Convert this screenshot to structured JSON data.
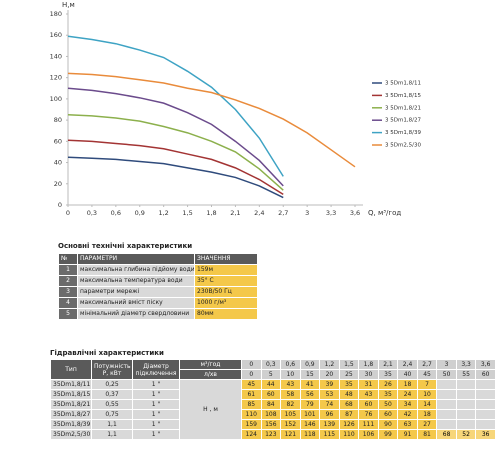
{
  "chart_data": {
    "type": "line",
    "y_label": "H,м",
    "x_label": "Q, м³/год",
    "x": [
      0,
      0.3,
      0.6,
      0.9,
      1.2,
      1.5,
      1.8,
      2.1,
      2.4,
      2.7,
      3,
      3.3,
      3.6
    ],
    "xlim": [
      0,
      3.6
    ],
    "xticks": [
      0,
      {
        "value": 0.3,
        "label": "0,3"
      },
      {
        "value": 0.6,
        "label": "0,6"
      },
      {
        "value": 0.9,
        "label": "0,9"
      },
      {
        "value": 1.2,
        "label": "1,2"
      },
      {
        "value": 1.5,
        "label": "1,5"
      },
      {
        "value": 1.8,
        "label": "1,8"
      },
      {
        "value": 2.1,
        "label": "2,1"
      },
      {
        "value": 2.4,
        "label": "2,4"
      },
      {
        "value": 2.7,
        "label": "2,7"
      },
      3,
      {
        "value": 3.3,
        "label": "3,3"
      },
      {
        "value": 3.6,
        "label": "3,6"
      }
    ],
    "ylim": [
      0,
      180
    ],
    "yticks": [
      0,
      20,
      40,
      60,
      80,
      100,
      120,
      140,
      160,
      180
    ],
    "grid": false,
    "legend": "right",
    "series": [
      {
        "name": "3 5Dm1,8/11",
        "color": "#2f4b7c",
        "values": [
          45,
          44,
          43,
          41,
          39,
          35,
          31,
          26,
          18,
          7,
          null,
          null,
          null
        ]
      },
      {
        "name": "3 5Dm1,8/15",
        "color": "#a33434",
        "values": [
          61,
          60,
          58,
          56,
          53,
          48,
          43,
          35,
          24,
          10,
          null,
          null,
          null
        ]
      },
      {
        "name": "3 5Dm1,8/21",
        "color": "#8cb04c",
        "values": [
          85,
          84,
          82,
          79,
          74,
          68,
          60,
          50,
          34,
          14,
          null,
          null,
          null
        ]
      },
      {
        "name": "3 5Dm1,8/27",
        "color": "#6b4b8c",
        "values": [
          110,
          108,
          105,
          101,
          96,
          87,
          76,
          60,
          42,
          18,
          null,
          null,
          null
        ]
      },
      {
        "name": "3 5Dm1,8/39",
        "color": "#3ea3c4",
        "values": [
          159,
          156,
          152,
          146,
          139,
          126,
          111,
          90,
          63,
          27,
          null,
          null,
          null
        ]
      },
      {
        "name": "3 5Dm2,5/30",
        "color": "#e98b3b",
        "values": [
          124,
          123,
          121,
          118,
          115,
          110,
          106,
          99,
          91,
          81,
          68,
          52,
          36
        ]
      }
    ]
  },
  "specs": {
    "title": "Основні технічні характеристики",
    "header": [
      "№",
      "ПАРАМЕТРИ",
      "ЗНАЧЕННЯ"
    ],
    "rows": [
      [
        "1",
        "максимальна глибина підйому води",
        "159м"
      ],
      [
        "2",
        "максимальна температура води",
        "35° С"
      ],
      [
        "3",
        "параметри мережі",
        "230В/50 Гц"
      ],
      [
        "4",
        "максимальний вміст піску",
        "1000 г/м³"
      ],
      [
        "5",
        "мінімальний діаметр свердловини",
        "80мм"
      ]
    ]
  },
  "hydraulics": {
    "title": "Гідравлічні характеристики",
    "header": [
      "Тип",
      "Потужність Р, кВт",
      "Діаметр підключення",
      "м³/год"
    ],
    "flow_lpm_label": "л/хв",
    "flow_lpm": [
      0,
      5,
      10,
      15,
      20,
      25,
      30,
      35,
      40,
      45,
      50,
      55,
      60
    ],
    "head_label": "Н , м",
    "rows": [
      [
        "35Dm1,8/11",
        "0,25",
        "1 \""
      ],
      [
        "35Dm1,8/15",
        "0,37",
        "1 \""
      ],
      [
        "35Dm1,8/21",
        "0,55",
        "1 \""
      ],
      [
        "35Dm1,8/27",
        "0,75",
        "1 \""
      ],
      [
        "35Dm1,8/39",
        "1,1",
        "1 \""
      ],
      [
        "35Dm2,5/30",
        "1,1",
        "1 \""
      ]
    ]
  }
}
